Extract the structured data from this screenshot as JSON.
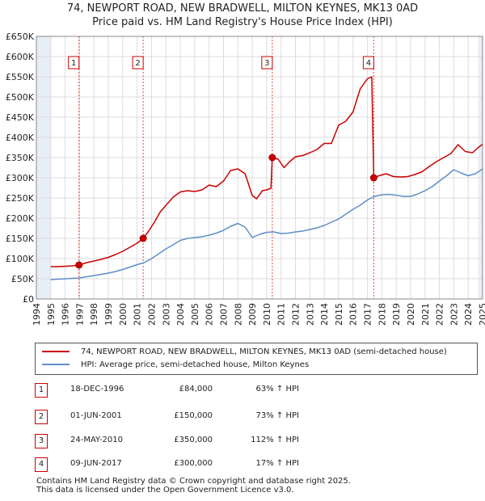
{
  "title_line1": "74, NEWPORT ROAD, NEW BRADWELL, MILTON KEYNES, MK13 0AD",
  "title_line2": "Price paid vs. HM Land Registry's House Price Index (HPI)",
  "colors": {
    "property_line": "#cc0000",
    "hpi_line": "#5b8fc8",
    "shade": "#e8eef7",
    "grid": "#dcdcdc",
    "marker": "#cc0000"
  },
  "legend": {
    "property": "74, NEWPORT ROAD, NEW BRADWELL, MILTON KEYNES, MK13 0AD (semi-detached house)",
    "hpi": "HPI: Average price, semi-detached house, Milton Keynes"
  },
  "sales": [
    {
      "num": "1",
      "date": "18-DEC-1996",
      "price": "£84,000",
      "hpi": "63% ↑ HPI"
    },
    {
      "num": "2",
      "date": "01-JUN-2001",
      "price": "£150,000",
      "hpi": "73% ↑ HPI"
    },
    {
      "num": "3",
      "date": "24-MAY-2010",
      "price": "£350,000",
      "hpi": "112% ↑ HPI"
    },
    {
      "num": "4",
      "date": "09-JUN-2017",
      "price": "£300,000",
      "hpi": "17% ↑ HPI"
    }
  ],
  "footer_line1": "Contains HM Land Registry data © Crown copyright and database right 2025.",
  "footer_line2": "This data is licensed under the Open Government Licence v3.0.",
  "chart_data": {
    "type": "line",
    "title": "74, NEWPORT ROAD, NEW BRADWELL, MILTON KEYNES, MK13 0AD — Price paid vs. HM Land Registry's House Price Index (HPI)",
    "xlabel": "",
    "ylabel": "",
    "xlim": [
      1994,
      2025
    ],
    "ylim": [
      0,
      650000
    ],
    "grid": true,
    "y_ticks": [
      0,
      50000,
      100000,
      150000,
      200000,
      250000,
      300000,
      350000,
      400000,
      450000,
      500000,
      550000,
      600000,
      650000
    ],
    "y_tick_labels": [
      "£0",
      "£50K",
      "£100K",
      "£150K",
      "£200K",
      "£250K",
      "£300K",
      "£350K",
      "£400K",
      "£450K",
      "£500K",
      "£550K",
      "£600K",
      "£650K"
    ],
    "x_ticks": [
      1994,
      1995,
      1996,
      1997,
      1998,
      1999,
      2000,
      2001,
      2002,
      2003,
      2004,
      2005,
      2006,
      2007,
      2008,
      2009,
      2010,
      2011,
      2012,
      2013,
      2014,
      2015,
      2016,
      2017,
      2018,
      2019,
      2020,
      2021,
      2022,
      2023,
      2024,
      2025
    ],
    "x_tick_labels": [
      "1994",
      "1995",
      "1996",
      "1997",
      "1998",
      "1999",
      "2000",
      "2001",
      "2002",
      "2003",
      "2004",
      "2005",
      "2006",
      "2007",
      "2008",
      "2009",
      "2010",
      "2011",
      "2012",
      "2013",
      "2014",
      "2015",
      "2016",
      "2017",
      "2018",
      "2019",
      "2020",
      "2021",
      "2022",
      "2023",
      "2024",
      "2025"
    ],
    "sale_points": [
      {
        "label": "1",
        "x": 1996.96,
        "y": 84000
      },
      {
        "label": "2",
        "x": 2001.42,
        "y": 150000
      },
      {
        "label": "3",
        "x": 2010.39,
        "y": 350000
      },
      {
        "label": "4",
        "x": 2017.44,
        "y": 300000
      }
    ],
    "series": [
      {
        "name": "74, NEWPORT ROAD, NEW BRADWELL, MILTON KEYNES, MK13 0AD (semi-detached house)",
        "x": [
          1995.0,
          1995.5,
          1996.0,
          1996.5,
          1996.96,
          1997.5,
          1998.0,
          1998.5,
          1999.0,
          1999.5,
          2000.0,
          2000.5,
          2001.0,
          2001.42,
          2001.8,
          2002.2,
          2002.6,
          2003.0,
          2003.5,
          2004.0,
          2004.5,
          2005.0,
          2005.5,
          2006.0,
          2006.5,
          2007.0,
          2007.5,
          2008.0,
          2008.5,
          2009.0,
          2009.3,
          2009.7,
          2010.0,
          2010.3,
          2010.39,
          2010.8,
          2011.2,
          2011.6,
          2012.0,
          2012.5,
          2013.0,
          2013.5,
          2014.0,
          2014.5,
          2015.0,
          2015.5,
          2016.0,
          2016.5,
          2017.0,
          2017.3,
          2017.44,
          2017.8,
          2018.3,
          2018.8,
          2019.3,
          2019.8,
          2020.3,
          2020.8,
          2021.3,
          2021.8,
          2022.3,
          2022.8,
          2023.3,
          2023.8,
          2024.3,
          2024.7,
          2025.0
        ],
        "values": [
          80000,
          80000,
          81000,
          82000,
          84000,
          90000,
          94000,
          98000,
          103000,
          110000,
          118000,
          128000,
          138000,
          150000,
          168000,
          190000,
          215000,
          232000,
          252000,
          265000,
          268000,
          266000,
          270000,
          282000,
          278000,
          292000,
          318000,
          322000,
          310000,
          256000,
          248000,
          268000,
          270000,
          274000,
          350000,
          346000,
          325000,
          340000,
          352000,
          355000,
          362000,
          370000,
          385000,
          385000,
          430000,
          440000,
          463000,
          520000,
          545000,
          550000,
          300000,
          305000,
          310000,
          303000,
          302000,
          303000,
          308000,
          315000,
          328000,
          340000,
          350000,
          360000,
          382000,
          365000,
          362000,
          375000,
          383000
        ]
      },
      {
        "name": "HPI: Average price, semi-detached house, Milton Keynes",
        "x": [
          1995.0,
          1995.5,
          1996.0,
          1996.5,
          1997.0,
          1997.5,
          1998.0,
          1998.5,
          1999.0,
          1999.5,
          2000.0,
          2000.5,
          2001.0,
          2001.5,
          2002.0,
          2002.5,
          2003.0,
          2003.5,
          2004.0,
          2004.5,
          2005.0,
          2005.5,
          2006.0,
          2006.5,
          2007.0,
          2007.5,
          2008.0,
          2008.5,
          2009.0,
          2009.5,
          2010.0,
          2010.5,
          2011.0,
          2011.5,
          2012.0,
          2012.5,
          2013.0,
          2013.5,
          2014.0,
          2014.5,
          2015.0,
          2015.5,
          2016.0,
          2016.5,
          2017.0,
          2017.5,
          2018.0,
          2018.5,
          2019.0,
          2019.5,
          2020.0,
          2020.5,
          2021.0,
          2021.5,
          2022.0,
          2022.5,
          2023.0,
          2023.5,
          2024.0,
          2024.5,
          2025.0
        ],
        "values": [
          48000,
          49000,
          50000,
          51000,
          52000,
          55000,
          58000,
          61000,
          64000,
          68000,
          73000,
          79000,
          85000,
          90000,
          100000,
          112000,
          124000,
          134000,
          145000,
          150000,
          152000,
          154000,
          158000,
          163000,
          170000,
          180000,
          187000,
          178000,
          152000,
          160000,
          165000,
          166000,
          162000,
          163000,
          166000,
          168000,
          172000,
          176000,
          182000,
          190000,
          198000,
          210000,
          222000,
          232000,
          245000,
          254000,
          258000,
          259000,
          257000,
          254000,
          254000,
          260000,
          268000,
          278000,
          292000,
          305000,
          320000,
          312000,
          305000,
          310000,
          322000
        ]
      }
    ]
  }
}
